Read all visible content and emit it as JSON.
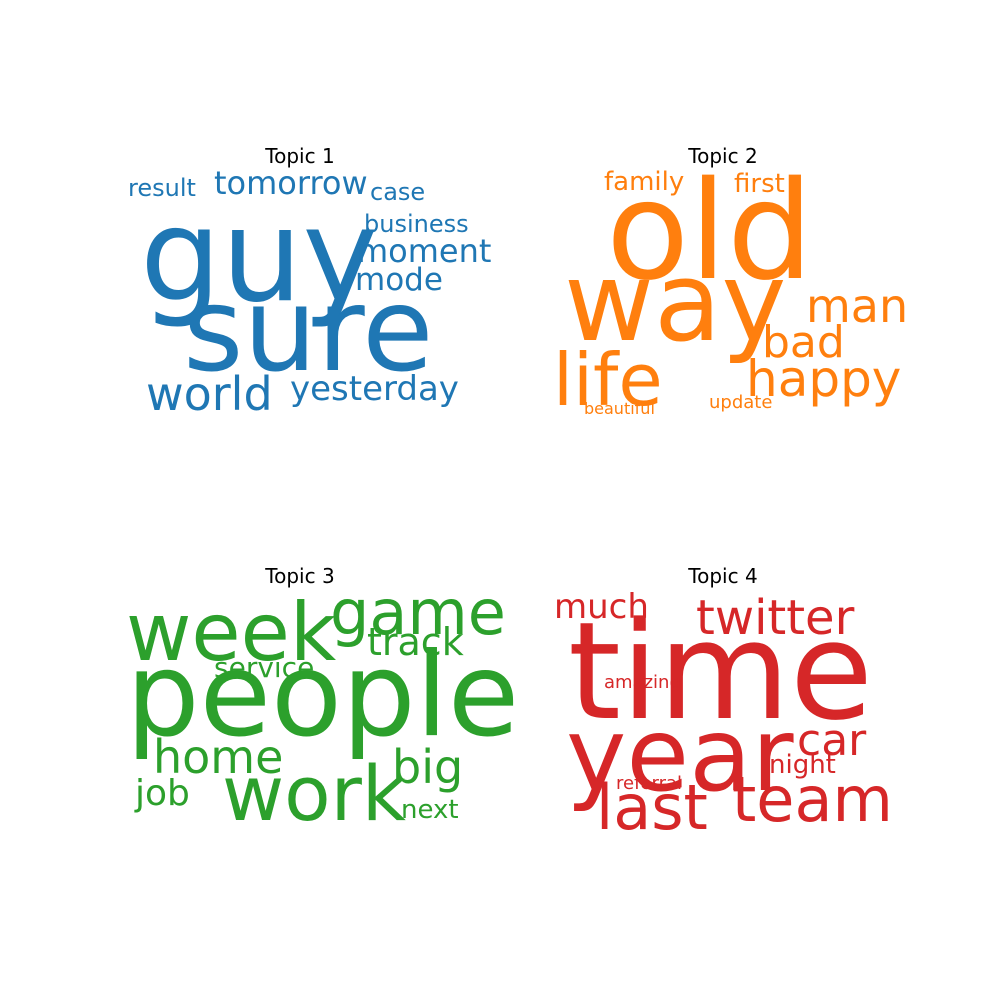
{
  "chart_data": [
    {
      "type": "wordcloud",
      "title": "Topic 1",
      "color": "#1f77b4",
      "words": [
        "guy",
        "sure",
        "world",
        "yesterday",
        "tomorrow",
        "moment",
        "mode",
        "business",
        "result",
        "case"
      ]
    },
    {
      "type": "wordcloud",
      "title": "Topic 2",
      "color": "#ff7f0e",
      "words": [
        "old",
        "way",
        "life",
        "happy",
        "man",
        "bad",
        "family",
        "first",
        "update",
        "beautiful"
      ]
    },
    {
      "type": "wordcloud",
      "title": "Topic 3",
      "color": "#2ca02c",
      "words": [
        "people",
        "week",
        "work",
        "game",
        "home",
        "big",
        "track",
        "service",
        "job",
        "next"
      ]
    },
    {
      "type": "wordcloud",
      "title": "Topic 4",
      "color": "#d62728",
      "words": [
        "time",
        "year",
        "twitter",
        "last",
        "team",
        "car",
        "much",
        "night",
        "amazing",
        "referral"
      ]
    }
  ]
}
